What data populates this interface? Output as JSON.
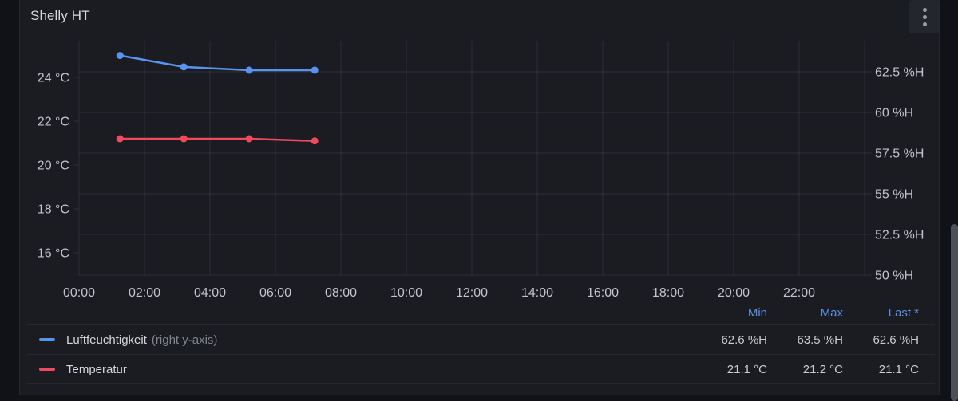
{
  "panel": {
    "title": "Shelly HT"
  },
  "colors": {
    "page_bg": "#111217",
    "panel_bg": "#1a1c22",
    "grid": "rgba(204,204,220,0.11)",
    "axis_text": "#c3c4cb",
    "legend_header": "#5d8fe4",
    "series_blue": "#5794F2",
    "series_red": "#F2495C"
  },
  "chart_data": {
    "type": "line",
    "title": "Shelly HT",
    "grid": true,
    "x_axis": {
      "unit": "time",
      "tick_hours": [
        0,
        2,
        4,
        6,
        8,
        10,
        12,
        14,
        16,
        18,
        20,
        22
      ],
      "tick_labels": [
        "00:00",
        "02:00",
        "04:00",
        "06:00",
        "08:00",
        "10:00",
        "12:00",
        "14:00",
        "16:00",
        "18:00",
        "20:00",
        "22:00"
      ],
      "range_hours": [
        0,
        24
      ]
    },
    "left_axis": {
      "unit": "°C",
      "ticks": [
        {
          "v": 24,
          "label": "24 °C"
        },
        {
          "v": 22,
          "label": "22 °C"
        },
        {
          "v": 20,
          "label": "20 °C"
        },
        {
          "v": 18,
          "label": "18 °C"
        },
        {
          "v": 16,
          "label": "16 °C"
        }
      ],
      "range": [
        15.0,
        25.5
      ]
    },
    "right_axis": {
      "unit": "%H",
      "ticks": [
        {
          "v": 62.5,
          "label": "62.5 %H"
        },
        {
          "v": 60,
          "label": "60 %H"
        },
        {
          "v": 57.5,
          "label": "57.5 %H"
        },
        {
          "v": 55,
          "label": "55 %H"
        },
        {
          "v": 52.5,
          "label": "52.5 %H"
        },
        {
          "v": 50,
          "label": "50 %H"
        }
      ],
      "range": [
        50,
        64.4
      ]
    },
    "series": [
      {
        "name": "Luftfeuchtigkeit",
        "axis": "right",
        "color": "#5794F2",
        "points": [
          {
            "hour": 1.25,
            "value": 63.5
          },
          {
            "hour": 3.2,
            "value": 62.8
          },
          {
            "hour": 5.2,
            "value": 62.6
          },
          {
            "hour": 7.2,
            "value": 62.6
          }
        ]
      },
      {
        "name": "Temperatur",
        "axis": "left",
        "color": "#F2495C",
        "points": [
          {
            "hour": 1.25,
            "value": 21.2
          },
          {
            "hour": 3.2,
            "value": 21.2
          },
          {
            "hour": 5.2,
            "value": 21.2
          },
          {
            "hour": 7.2,
            "value": 21.1
          }
        ]
      }
    ]
  },
  "legend": {
    "columns": [
      "Min",
      "Max",
      "Last *"
    ],
    "rows": [
      {
        "label": "Luftfeuchtigkeit",
        "annotation": "(right y-axis)",
        "color": "#5794F2",
        "min": "62.6 %H",
        "max": "63.5 %H",
        "last": "62.6 %H"
      },
      {
        "label": "Temperatur",
        "annotation": "",
        "color": "#F2495C",
        "min": "21.1 °C",
        "max": "21.2 °C",
        "last": "21.1 °C"
      }
    ]
  }
}
